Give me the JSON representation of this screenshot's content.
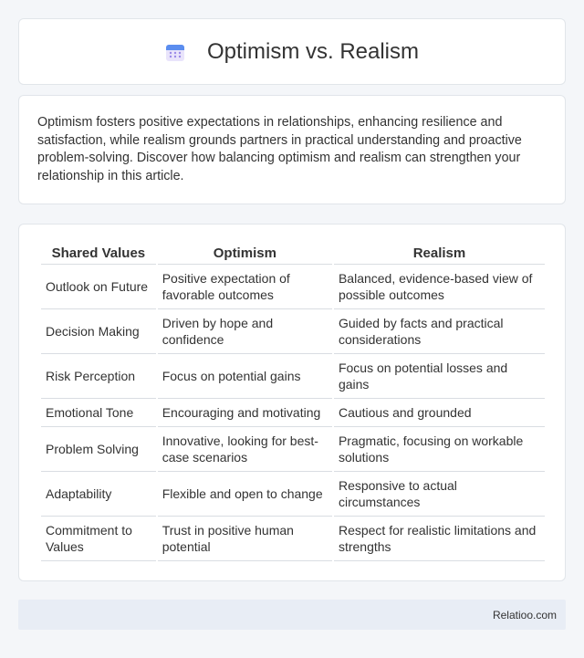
{
  "header": {
    "title": "Optimism vs. Realism",
    "icon": "calendar-icon"
  },
  "intro": {
    "text": "Optimism fosters positive expectations in relationships, enhancing resilience and satisfaction, while realism grounds partners in practical understanding and proactive problem-solving. Discover how balancing optimism and realism can strengthen your relationship in this article."
  },
  "table": {
    "headers": [
      "Shared Values",
      "Optimism",
      "Realism"
    ],
    "rows": [
      [
        "Outlook on Future",
        "Positive expectation of favorable outcomes",
        "Balanced, evidence-based view of possible outcomes"
      ],
      [
        "Decision Making",
        "Driven by hope and confidence",
        "Guided by facts and practical considerations"
      ],
      [
        "Risk Perception",
        "Focus on potential gains",
        "Focus on potential losses and gains"
      ],
      [
        "Emotional Tone",
        "Encouraging and motivating",
        "Cautious and grounded"
      ],
      [
        "Problem Solving",
        "Innovative, looking for best-case scenarios",
        "Pragmatic, focusing on workable solutions"
      ],
      [
        "Adaptability",
        "Flexible and open to change",
        "Responsive to actual circumstances"
      ],
      [
        "Commitment to Values",
        "Trust in positive human potential",
        "Respect for realistic limitations and strengths"
      ]
    ]
  },
  "footer": {
    "brand": "Relatioo.com"
  }
}
